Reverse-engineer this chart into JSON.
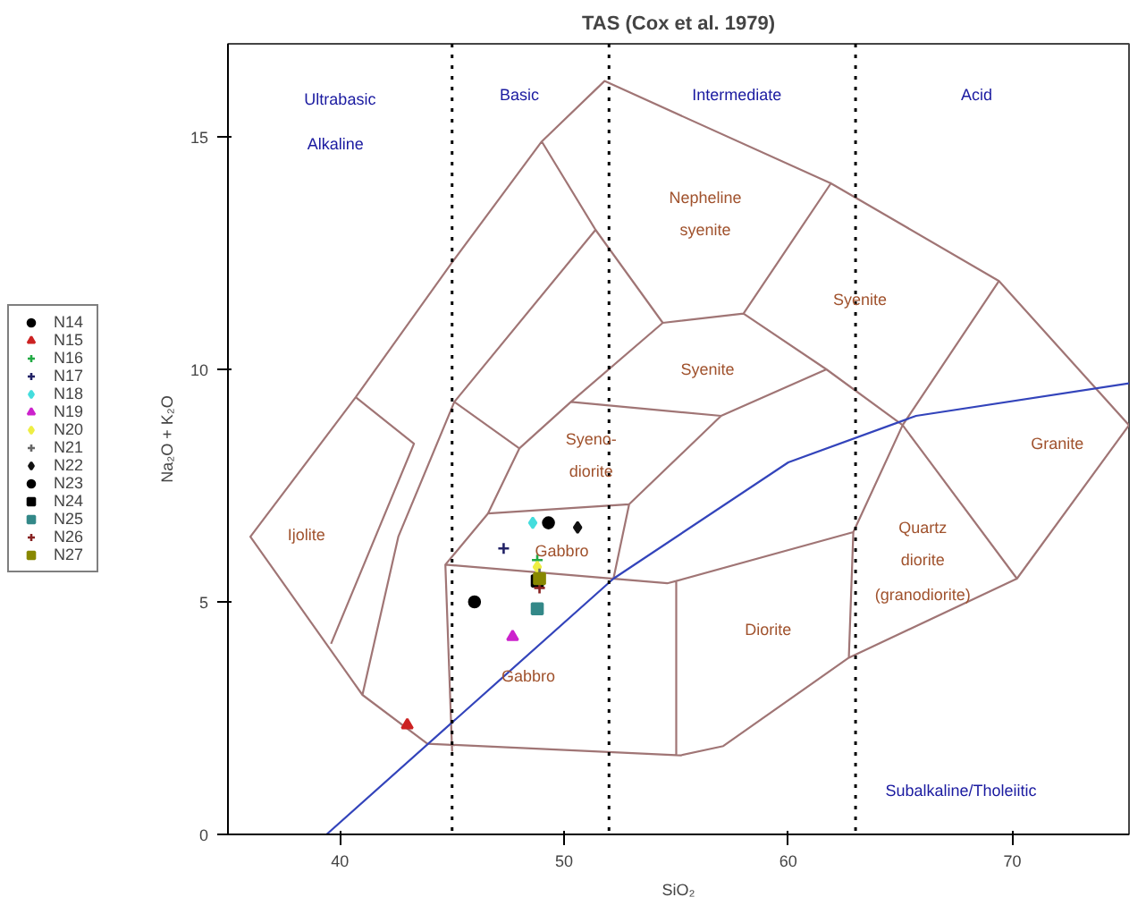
{
  "chart_data": {
    "type": "scatter",
    "title": "TAS (Cox et al. 1979)",
    "xlabel": "SiO₂",
    "ylabel": "Na₂O + K₂O",
    "xlim": [
      35,
      75.2
    ],
    "ylim": [
      0,
      17
    ],
    "xticks": [
      40,
      50,
      60,
      70
    ],
    "yticks": [
      0,
      5,
      10,
      15
    ],
    "grid": false,
    "legend": "left",
    "ref_lines": [
      {
        "axis": "x",
        "value": 45,
        "line_style": "dotted",
        "color": "#000000"
      },
      {
        "axis": "x",
        "value": 52,
        "line_style": "dotted",
        "color": "#000000"
      },
      {
        "axis": "x",
        "value": 63,
        "line_style": "dotted",
        "color": "#000000"
      }
    ],
    "series": [
      {
        "type": "line",
        "color": "#a07575",
        "x": [
          51.8,
          49.0,
          45.0,
          40.7,
          36.0,
          41.0,
          43.9,
          55.2,
          57.1,
          62.7,
          70.2,
          75.2,
          69.4,
          61.9,
          51.8,
          49.0,
          51.4,
          54.4,
          58.0,
          61.9,
          58.0,
          61.7,
          65.1,
          69.4,
          65.1,
          70.2,
          65.1,
          62.9,
          62.7,
          62.9,
          55.0,
          55.0,
          55.0,
          54.6,
          44.7,
          45.0,
          44.7,
          46.6,
          48.0,
          50.3,
          54.4,
          50.3,
          57.0,
          61.7,
          57.0,
          52.9,
          52.2,
          52.9,
          46.6,
          48.0,
          45.1,
          51.4,
          45.1,
          42.6,
          41.0,
          36.0,
          40.7,
          43.3,
          39.6
        ],
        "values": [
          16.2,
          14.9,
          12.3,
          9.4,
          6.4,
          3.0,
          1.95,
          1.7,
          1.9,
          3.8,
          5.5,
          8.8,
          11.9,
          14.0,
          16.2,
          14.9,
          13.0,
          11.0,
          11.2,
          14.0,
          11.2,
          10.0,
          8.8,
          11.9,
          8.8,
          5.5,
          8.8,
          6.5,
          3.8,
          6.5,
          5.45,
          1.7,
          5.45,
          5.4,
          5.8,
          1.8,
          5.8,
          6.9,
          8.3,
          9.3,
          11.0,
          9.3,
          9.0,
          10.0,
          9.0,
          7.1,
          5.5,
          7.1,
          6.9,
          8.3,
          9.3,
          13.0,
          9.3,
          6.4,
          3.0,
          6.4,
          9.4,
          8.4,
          4.1
        ]
      },
      {
        "type": "line",
        "color": "#3344bb",
        "x": [
          39.4,
          52.2,
          60.0,
          65.7,
          75.2
        ],
        "values": [
          0,
          5.5,
          8.0,
          9.0,
          9.7
        ]
      },
      {
        "name": "N14",
        "color": "#000000",
        "marker": "circle",
        "x": [
          46.0
        ],
        "values": [
          5.0
        ]
      },
      {
        "name": "N15",
        "color": "#cc2222",
        "marker": "triangle",
        "x": [
          43.0
        ],
        "values": [
          2.35
        ]
      },
      {
        "name": "N16",
        "color": "#22aa44",
        "marker": "cross",
        "x": [
          48.8
        ],
        "values": [
          5.9
        ]
      },
      {
        "name": "N17",
        "color": "#222266",
        "marker": "cross",
        "x": [
          47.3
        ],
        "values": [
          6.15
        ]
      },
      {
        "name": "N18",
        "color": "#44dddd",
        "marker": "diamond",
        "x": [
          48.6
        ],
        "values": [
          6.7
        ]
      },
      {
        "name": "N19",
        "color": "#cc22cc",
        "marker": "triangle",
        "x": [
          47.7
        ],
        "values": [
          4.25
        ]
      },
      {
        "name": "N20",
        "color": "#eeee44",
        "marker": "diamond",
        "x": [
          48.8
        ],
        "values": [
          5.75
        ]
      },
      {
        "name": "N21",
        "color": "#666666",
        "marker": "cross",
        "x": [
          48.9
        ],
        "values": [
          5.6
        ]
      },
      {
        "name": "N22",
        "color": "#111111",
        "marker": "diamond",
        "x": [
          50.6
        ],
        "values": [
          6.6
        ]
      },
      {
        "name": "N23",
        "color": "#000000",
        "marker": "circle",
        "x": [
          49.3
        ],
        "values": [
          6.7
        ]
      },
      {
        "name": "N24",
        "color": "#000000",
        "marker": "square",
        "x": [
          48.8
        ],
        "values": [
          5.45
        ]
      },
      {
        "name": "N25",
        "color": "#338888",
        "marker": "square",
        "x": [
          48.8
        ],
        "values": [
          4.85
        ]
      },
      {
        "name": "N26",
        "color": "#882222",
        "marker": "cross",
        "x": [
          48.9
        ],
        "values": [
          5.3
        ]
      },
      {
        "name": "N27",
        "color": "#888800",
        "marker": "square",
        "x": [
          48.9
        ],
        "values": [
          5.5
        ]
      }
    ],
    "annotations": [
      "Ultrabasic",
      "Alkaline",
      "Basic",
      "Intermediate",
      "Acid",
      "Nepheline",
      "syenite",
      "Syenite",
      "Syenite",
      "Syeno-",
      "diorite",
      "Granite",
      "Ijolite",
      "Quartz",
      "diorite",
      "(granodiorite)",
      "Gabbro",
      "Gabbro",
      "Diorite",
      "Subalkaline/Tholeiitic"
    ]
  }
}
